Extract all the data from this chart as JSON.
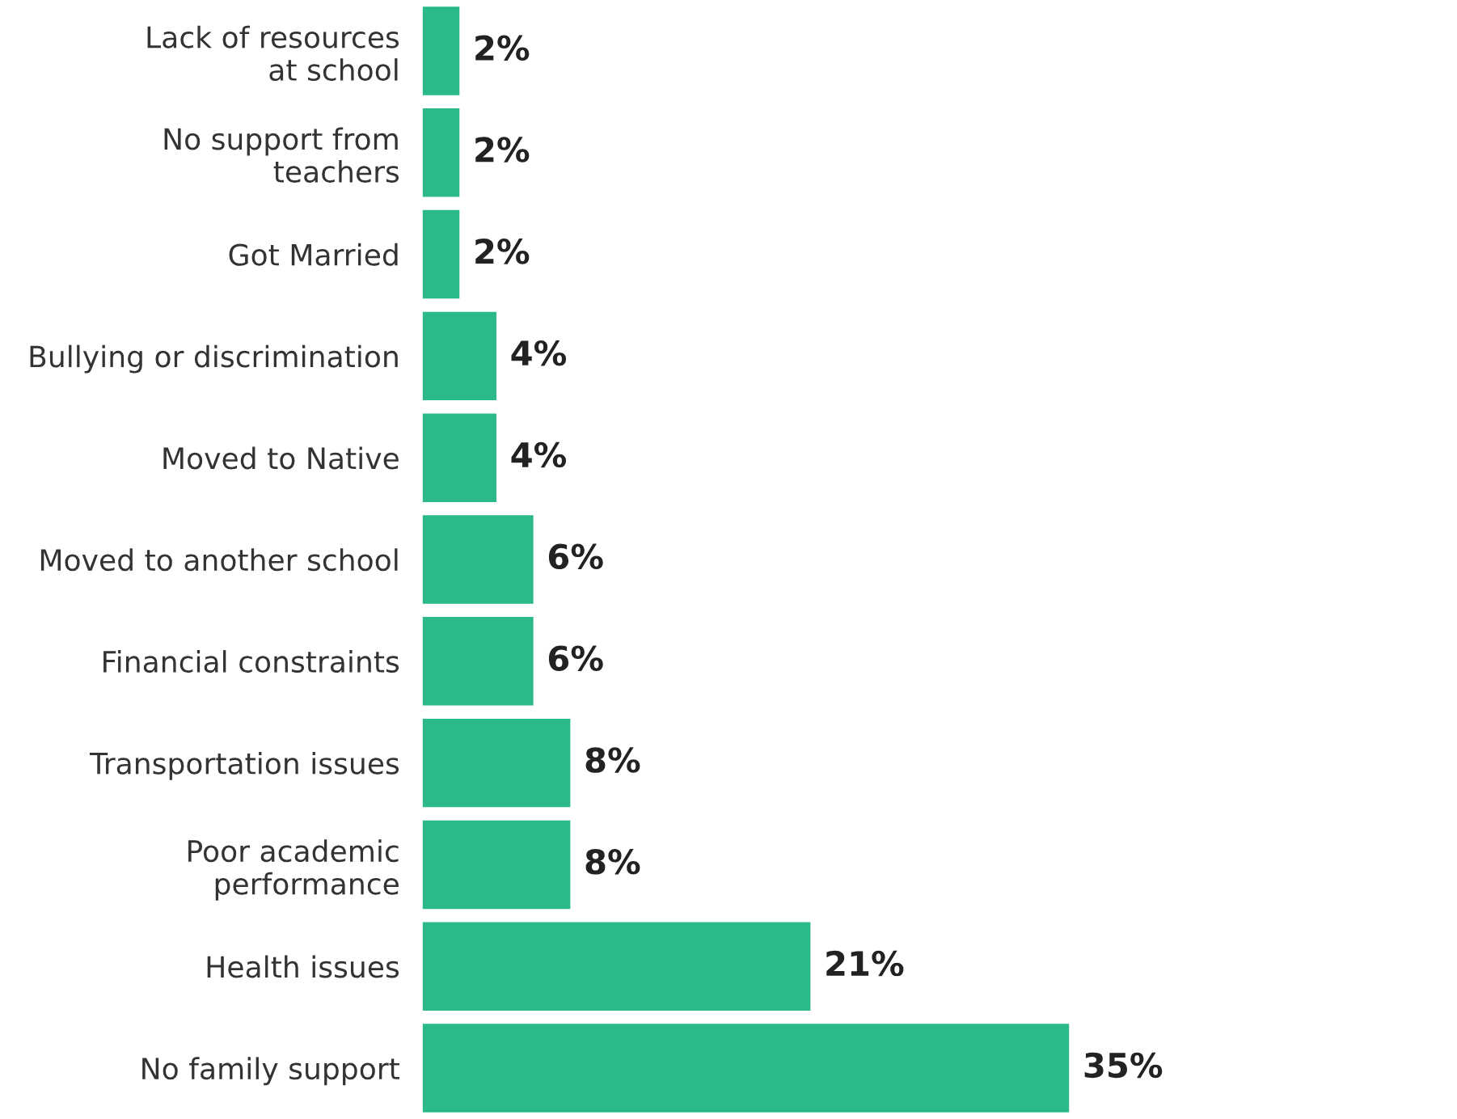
{
  "chart_data": {
    "type": "bar",
    "orientation": "horizontal",
    "categories": [
      "Lack of resources\nat school",
      "No support from\nteachers",
      "Got Married",
      "Bullying or discrimination",
      "Moved to Native",
      "Moved to another school",
      "Financial constraints",
      "Transportation issues",
      "Poor academic\nperformance",
      "Health issues",
      "No family support"
    ],
    "values": [
      2,
      2,
      2,
      4,
      4,
      6,
      6,
      8,
      8,
      21,
      35
    ],
    "value_labels": [
      "2%",
      "2%",
      "2%",
      "4%",
      "4%",
      "6%",
      "6%",
      "8%",
      "8%",
      "21%",
      "35%"
    ],
    "color": "#2cb98a",
    "tick_labels": "y",
    "grid": false,
    "legend": false
  }
}
